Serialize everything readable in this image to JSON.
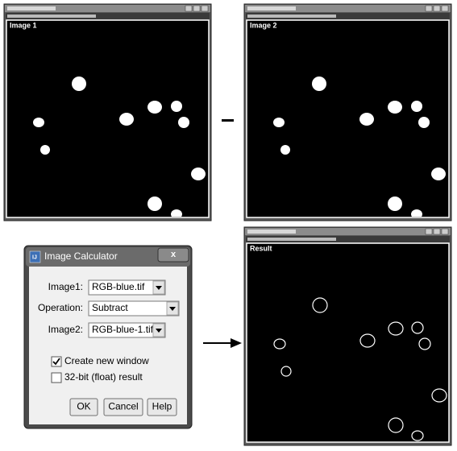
{
  "windows": [
    {
      "label": "Image 1"
    },
    {
      "label": "Image 2"
    },
    {
      "label": "Result"
    }
  ],
  "dialog": {
    "title": "Image Calculator",
    "fields": [
      {
        "label": "Image1:",
        "value": "RGB-blue.tif"
      },
      {
        "label": "Operation:",
        "value": "Subtract"
      },
      {
        "label": "Image2:",
        "value": "RGB-blue-1.tif"
      }
    ],
    "checkboxes": [
      {
        "label": "Create new window",
        "checked": true
      },
      {
        "label": "32-bit (float) result",
        "checked": false
      }
    ],
    "buttons": [
      "OK",
      "Cancel",
      "Help"
    ]
  }
}
